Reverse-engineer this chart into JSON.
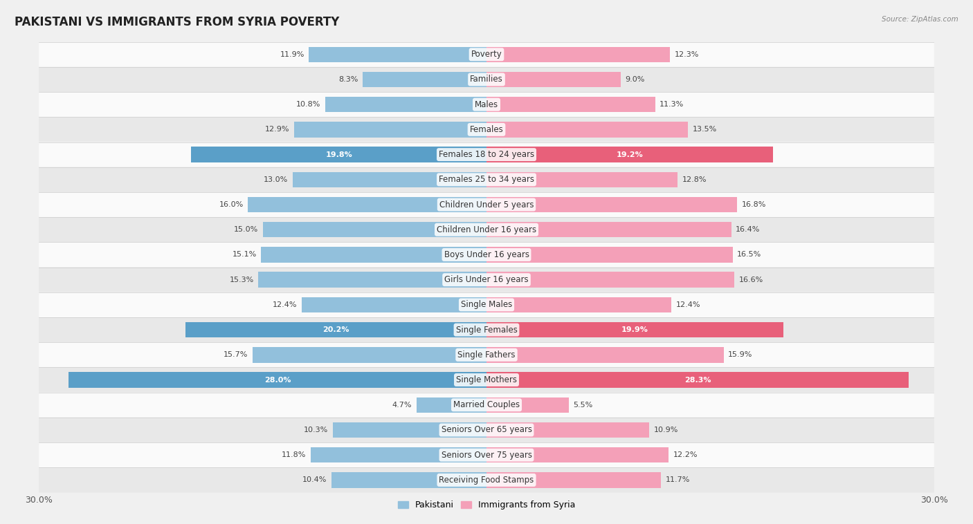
{
  "title": "PAKISTANI VS IMMIGRANTS FROM SYRIA POVERTY",
  "source": "Source: ZipAtlas.com",
  "categories": [
    "Poverty",
    "Families",
    "Males",
    "Females",
    "Females 18 to 24 years",
    "Females 25 to 34 years",
    "Children Under 5 years",
    "Children Under 16 years",
    "Boys Under 16 years",
    "Girls Under 16 years",
    "Single Males",
    "Single Females",
    "Single Fathers",
    "Single Mothers",
    "Married Couples",
    "Seniors Over 65 years",
    "Seniors Over 75 years",
    "Receiving Food Stamps"
  ],
  "pakistani": [
    11.9,
    8.3,
    10.8,
    12.9,
    19.8,
    13.0,
    16.0,
    15.0,
    15.1,
    15.3,
    12.4,
    20.2,
    15.7,
    28.0,
    4.7,
    10.3,
    11.8,
    10.4
  ],
  "syria": [
    12.3,
    9.0,
    11.3,
    13.5,
    19.2,
    12.8,
    16.8,
    16.4,
    16.5,
    16.6,
    12.4,
    19.9,
    15.9,
    28.3,
    5.5,
    10.9,
    12.2,
    11.7
  ],
  "pakistani_color": "#92c0dc",
  "syria_color": "#f4a0b8",
  "pakistani_highlight_color": "#5a9fc8",
  "syria_highlight_color": "#e8607a",
  "highlight_rows": [
    4,
    11,
    13
  ],
  "bar_height": 0.62,
  "max_val": 30,
  "background_color": "#f0f0f0",
  "row_bg_light": "#fafafa",
  "row_bg_dark": "#e8e8e8",
  "legend_labels": [
    "Pakistani",
    "Immigrants from Syria"
  ],
  "title_fontsize": 12,
  "label_fontsize": 8.5,
  "value_fontsize": 8,
  "axis_tick_fontsize": 9
}
